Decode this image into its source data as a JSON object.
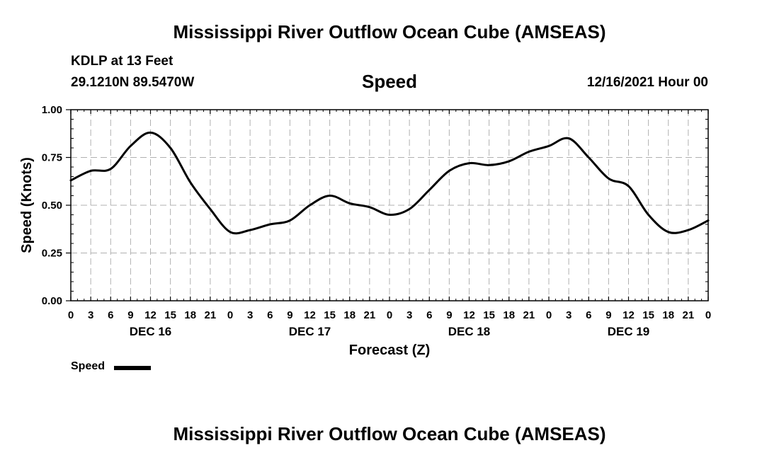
{
  "header": {
    "title": "Mississippi River Outflow Ocean Cube (AMSEAS)",
    "station": "KDLP at 13 Feet",
    "coords": "29.1210N  89.5470W",
    "plot_title": "Speed",
    "datetime": "12/16/2021 Hour 00"
  },
  "footer": {
    "title": "Mississippi River Outflow Ocean Cube (AMSEAS)"
  },
  "legend": {
    "label": "Speed",
    "color": "#000000"
  },
  "chart_data": {
    "type": "line",
    "title": "Speed",
    "xlabel": "Forecast (Z)",
    "ylabel": "Speed (Knots)",
    "xlim": [
      0,
      96
    ],
    "ylim": [
      0,
      1
    ],
    "grid": true,
    "legend_position": "bottom-left",
    "x_ticks": [
      0,
      3,
      6,
      9,
      12,
      15,
      18,
      21,
      24,
      27,
      30,
      33,
      36,
      39,
      42,
      45,
      48,
      51,
      54,
      57,
      60,
      63,
      66,
      69,
      72,
      75,
      78,
      81,
      84,
      87,
      90,
      93,
      96
    ],
    "x_tick_labels": [
      "0",
      "3",
      "6",
      "9",
      "12",
      "15",
      "18",
      "21",
      "0",
      "3",
      "6",
      "9",
      "12",
      "15",
      "18",
      "21",
      "0",
      "3",
      "6",
      "9",
      "12",
      "15",
      "18",
      "21",
      "0",
      "3",
      "6",
      "9",
      "12",
      "15",
      "18",
      "21",
      "0"
    ],
    "day_labels": [
      {
        "x": 12,
        "label": "DEC 16"
      },
      {
        "x": 36,
        "label": "DEC 17"
      },
      {
        "x": 60,
        "label": "DEC 18"
      },
      {
        "x": 84,
        "label": "DEC 19"
      }
    ],
    "y_ticks": [
      0,
      0.25,
      0.5,
      0.75,
      1.0
    ],
    "y_tick_labels": [
      "0.00",
      "0.25",
      "0.50",
      "0.75",
      "1.00"
    ],
    "series": [
      {
        "name": "Speed",
        "color": "#000000",
        "x": [
          0,
          3,
          6,
          9,
          12,
          15,
          18,
          21,
          24,
          27,
          30,
          33,
          36,
          39,
          42,
          45,
          48,
          51,
          54,
          57,
          60,
          63,
          66,
          69,
          72,
          75,
          78,
          81,
          84,
          87,
          90,
          93,
          96
        ],
        "values": [
          0.63,
          0.68,
          0.69,
          0.81,
          0.88,
          0.8,
          0.62,
          0.48,
          0.36,
          0.37,
          0.4,
          0.42,
          0.5,
          0.55,
          0.51,
          0.49,
          0.45,
          0.48,
          0.58,
          0.68,
          0.72,
          0.71,
          0.73,
          0.78,
          0.81,
          0.85,
          0.75,
          0.64,
          0.6,
          0.45,
          0.36,
          0.37,
          0.42
        ]
      }
    ]
  }
}
